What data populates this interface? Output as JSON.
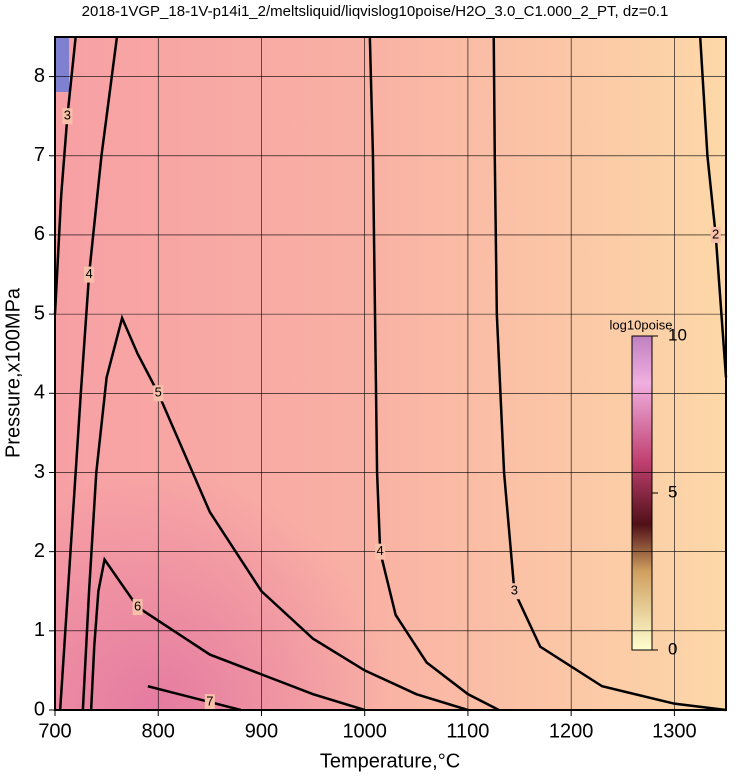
{
  "chart_data": {
    "type": "contour",
    "title": "2018-1VGP_18-1V-p14i1_2/meltsliquid/liqvislog10poise/H2O_3.0_C1.000_2_PT, dz=0.1",
    "x_label": "Temperature,°C",
    "y_label": "Pressure,x100MPa",
    "xlim": [
      700,
      1350
    ],
    "ylim": [
      0,
      8.5
    ],
    "xticks": [
      700,
      800,
      900,
      1000,
      1100,
      1200,
      1300
    ],
    "yticks": [
      0,
      1,
      2,
      3,
      4,
      5,
      6,
      7,
      8
    ],
    "grid": true,
    "colorbar": {
      "label": "log10poise",
      "lim": [
        0,
        10
      ],
      "ticks": [
        0,
        5,
        10
      ]
    },
    "series": [
      {
        "name": "4",
        "x": [
          1005,
          1008,
          1010,
          1012,
          1015,
          1030,
          1060,
          1100,
          1130
        ],
        "y": [
          8.5,
          7,
          5,
          3,
          2,
          1.2,
          0.6,
          0.2,
          0
        ]
      },
      {
        "name": "3",
        "x": [
          1125,
          1126,
          1128,
          1135,
          1145,
          1170,
          1230,
          1300,
          1350
        ],
        "y": [
          8.5,
          7,
          5,
          3,
          1.5,
          0.8,
          0.3,
          0.08,
          0
        ]
      },
      {
        "name": "2",
        "x": [
          1325,
          1332,
          1340,
          1350
        ],
        "y": [
          8.5,
          7,
          6,
          4.2
        ]
      },
      {
        "name": "5",
        "x": [
          727,
          733,
          740,
          750,
          765,
          780,
          800,
          850,
          900,
          950,
          1000,
          1050,
          1100
        ],
        "y": [
          0,
          1.5,
          3,
          4.2,
          4.95,
          4.5,
          4,
          2.5,
          1.5,
          0.9,
          0.5,
          0.2,
          0
        ]
      },
      {
        "name": "6",
        "x": [
          735,
          738,
          742,
          748,
          780,
          850,
          900,
          950,
          1000
        ],
        "y": [
          0,
          0.8,
          1.5,
          1.9,
          1.3,
          0.7,
          0.45,
          0.2,
          0
        ]
      },
      {
        "name": "7",
        "x": [
          790,
          820,
          850,
          880
        ],
        "y": [
          0.3,
          0.2,
          0.1,
          0
        ]
      },
      {
        "name": "4",
        "x": [
          705,
          715,
          725,
          733,
          745,
          760
        ],
        "y": [
          0,
          2,
          4,
          5.5,
          7,
          8.5
        ]
      },
      {
        "name": "3",
        "x": [
          700,
          706,
          712,
          720
        ],
        "y": [
          5,
          6.5,
          7.5,
          8.5
        ]
      }
    ]
  }
}
